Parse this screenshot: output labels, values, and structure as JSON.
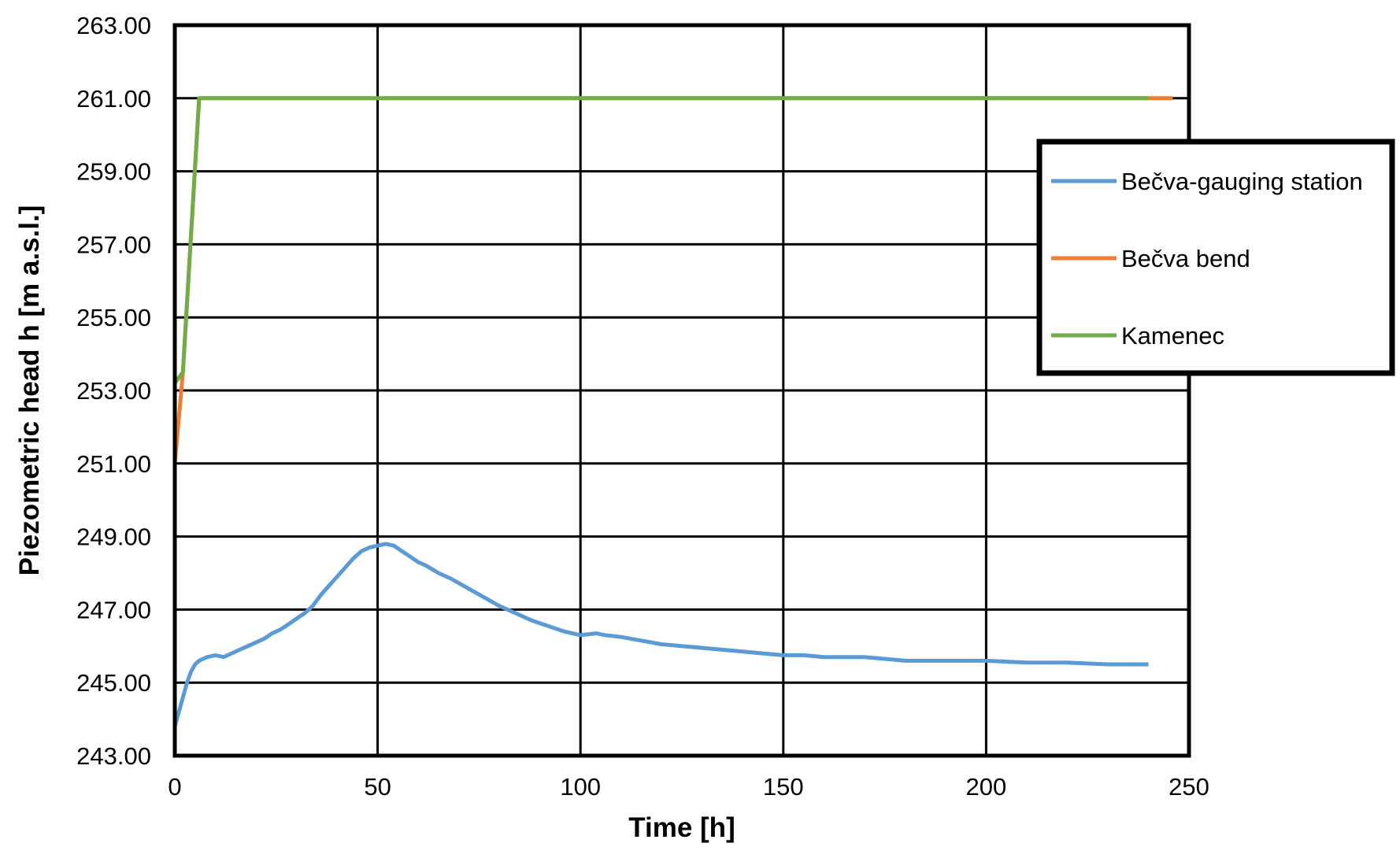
{
  "chart_data": {
    "type": "line",
    "title": "",
    "xlabel": "Time [h]",
    "ylabel": "Piezometric head h [m a.s.l.]",
    "xlim": [
      0,
      250
    ],
    "ylim": [
      243,
      263
    ],
    "xticks": [
      0,
      50,
      100,
      150,
      200,
      250
    ],
    "yticks": [
      243,
      245,
      247,
      249,
      251,
      253,
      255,
      257,
      259,
      261,
      263
    ],
    "xtick_labels": [
      "0",
      "50",
      "100",
      "150",
      "200",
      "250"
    ],
    "ytick_labels": [
      "243.00",
      "245.00",
      "247.00",
      "249.00",
      "251.00",
      "253.00",
      "255.00",
      "257.00",
      "259.00",
      "261.00",
      "263.00"
    ],
    "grid": true,
    "legend_position": "right",
    "series": [
      {
        "name": "Bečva-gauging station",
        "color": "#5B9BD5",
        "x": [
          0,
          1,
          2,
          3,
          4,
          5,
          6,
          7,
          8,
          10,
          12,
          14,
          16,
          18,
          20,
          22,
          24,
          26,
          28,
          30,
          32,
          34,
          36,
          38,
          40,
          42,
          44,
          46,
          48,
          50,
          52,
          54,
          56,
          58,
          60,
          62,
          65,
          68,
          72,
          76,
          80,
          84,
          88,
          92,
          96,
          100,
          104,
          106,
          110,
          115,
          120,
          125,
          130,
          135,
          140,
          145,
          150,
          155,
          160,
          165,
          170,
          175,
          180,
          185,
          190,
          195,
          200,
          210,
          220,
          230,
          240
        ],
        "y": [
          243.8,
          244.2,
          244.6,
          245.0,
          245.3,
          245.5,
          245.6,
          245.65,
          245.7,
          245.75,
          245.7,
          245.8,
          245.9,
          246.0,
          246.1,
          246.2,
          246.35,
          246.45,
          246.6,
          246.75,
          246.9,
          247.1,
          247.4,
          247.65,
          247.9,
          248.15,
          248.4,
          248.6,
          248.7,
          248.75,
          248.8,
          248.75,
          248.6,
          248.45,
          248.3,
          248.2,
          248.0,
          247.85,
          247.6,
          247.35,
          247.1,
          246.9,
          246.7,
          246.55,
          246.4,
          246.3,
          246.35,
          246.3,
          246.25,
          246.15,
          246.05,
          246.0,
          245.95,
          245.9,
          245.85,
          245.8,
          245.75,
          245.75,
          245.7,
          245.7,
          245.7,
          245.65,
          245.6,
          245.6,
          245.6,
          245.6,
          245.6,
          245.55,
          245.55,
          245.5,
          245.5
        ]
      },
      {
        "name": "Bečva bend",
        "color": "#ED7D31",
        "x": [
          0,
          2,
          6,
          246
        ],
        "y": [
          251.0,
          253.5,
          261.0,
          261.0
        ]
      },
      {
        "name": "Kamenec",
        "color": "#70AD47",
        "x": [
          0,
          2,
          6,
          240
        ],
        "y": [
          253.2,
          253.5,
          261.0,
          261.0
        ]
      }
    ]
  }
}
